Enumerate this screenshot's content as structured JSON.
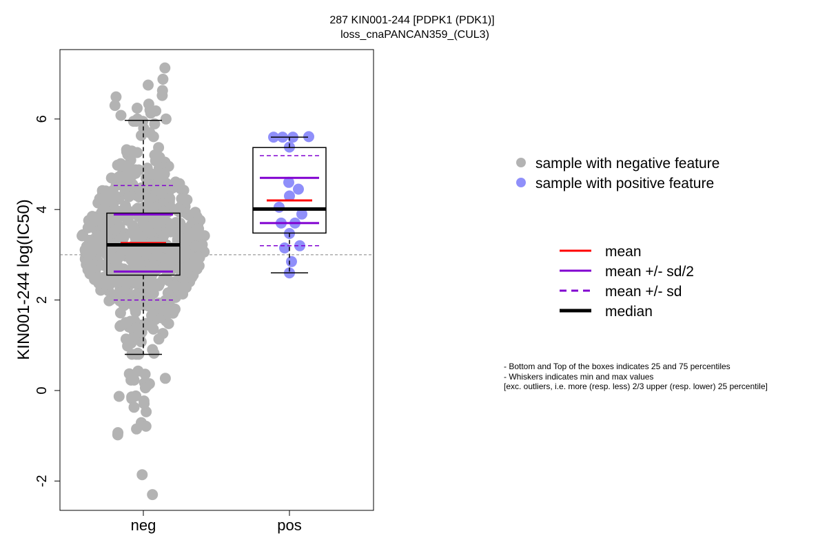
{
  "chart_data": {
    "type": "box",
    "title_line1": "287 KIN001-244 [PDPK1 (PDK1)]",
    "title_line2": "loss_cnaPANCAN359_(CUL3)",
    "xlabel": "",
    "ylabel": "KIN001-244 log(IC50)",
    "categories": [
      "neg",
      "pos"
    ],
    "ylim": [
      -2.6,
      7.3
    ],
    "yticks": [
      -2,
      0,
      2,
      4,
      6
    ],
    "reference_line": 3.0,
    "grid": false,
    "legend_position": "right",
    "colors": {
      "negative_points": "#b3b3b3",
      "positive_points": "#8f8ffa",
      "mean": "#ff0000",
      "sd": "#8000d0",
      "median": "#000000",
      "reference_line": "#808080"
    },
    "groups": [
      {
        "name": "neg",
        "n_points_approx": 700,
        "q1": 2.55,
        "median": 3.22,
        "q3": 3.92,
        "whisker_low": 0.8,
        "whisker_high": 5.97,
        "mean": 3.26,
        "mean_minus_half_sd": 2.63,
        "mean_plus_half_sd": 3.89,
        "mean_minus_sd": 2.0,
        "mean_plus_sd": 4.53,
        "outliers": [
          0.27,
          0.17,
          0.15,
          0.11,
          0.06,
          0.36,
          0.43,
          0.23,
          0.23,
          0.37,
          -0.14,
          -0.18,
          -0.13,
          -0.37,
          -0.47,
          -0.29,
          -0.23,
          -0.12,
          -0.85,
          -0.98,
          -0.71,
          -0.93,
          -0.79,
          -1.86,
          -2.3,
          6.0,
          6.0,
          6.08,
          6.13,
          6.18,
          6.2,
          6.24,
          6.3,
          6.33,
          6.49,
          6.52,
          6.63,
          6.75,
          6.88,
          7.13
        ]
      },
      {
        "name": "pos",
        "q1": 3.48,
        "median": 4.01,
        "q3": 5.37,
        "whisker_low": 2.6,
        "whisker_high": 5.6,
        "mean": 4.2,
        "mean_minus_half_sd": 3.7,
        "mean_plus_half_sd": 4.7,
        "mean_minus_sd": 3.2,
        "mean_plus_sd": 5.19,
        "points": [
          2.6,
          2.85,
          3.15,
          3.2,
          3.47,
          3.7,
          3.7,
          3.9,
          4.05,
          4.3,
          4.45,
          4.6,
          5.38,
          5.6,
          5.6,
          5.6,
          5.61
        ]
      }
    ]
  },
  "legend": {
    "points": [
      {
        "label": "sample with negative feature",
        "color": "#b3b3b3"
      },
      {
        "label": "sample with positive feature",
        "color": "#8f8ffa"
      }
    ],
    "lines": [
      {
        "label": "mean",
        "color": "#ff0000",
        "style": "solid"
      },
      {
        "label": "mean +/- sd/2",
        "color": "#8000d0",
        "style": "solid"
      },
      {
        "label": "mean +/- sd",
        "color": "#8000d0",
        "style": "dashed"
      },
      {
        "label": "median",
        "color": "#000000",
        "style": "thick"
      }
    ]
  },
  "notes": [
    "- Bottom and Top of the boxes indicates 25 and 75 percentiles",
    "- Whiskers indicates min and max values",
    "[exc. outliers, i.e. more (resp. less) 2/3 upper (resp. lower) 25 percentile]"
  ]
}
